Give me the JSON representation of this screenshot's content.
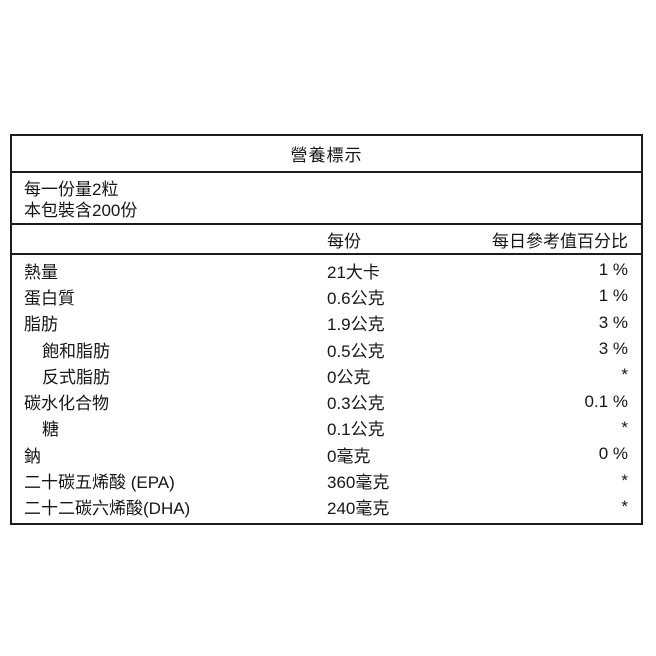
{
  "page": {
    "background_color": "#ffffff",
    "border_color": "#1c1c1c",
    "text_color": "#161616"
  },
  "table": {
    "title": "營養標示",
    "serving_lines": [
      "每一份量2粒",
      "本包裝含200份"
    ],
    "columns": {
      "amount": "每份",
      "daily_value": "每日參考值百分比"
    },
    "rows": [
      {
        "label": "熱量",
        "indent": false,
        "amount": "21大卡",
        "daily_value": "1 %"
      },
      {
        "label": "蛋白質",
        "indent": false,
        "amount": "0.6公克",
        "daily_value": "1 %"
      },
      {
        "label": "脂肪",
        "indent": false,
        "amount": "1.9公克",
        "daily_value": "3 %"
      },
      {
        "label": "飽和脂肪",
        "indent": true,
        "amount": "0.5公克",
        "daily_value": "3 %"
      },
      {
        "label": "反式脂肪",
        "indent": true,
        "amount": "0公克",
        "daily_value": "*"
      },
      {
        "label": "碳水化合物",
        "indent": false,
        "amount": "0.3公克",
        "daily_value": "0.1 %"
      },
      {
        "label": "糖",
        "indent": true,
        "amount": "0.1公克",
        "daily_value": "*"
      },
      {
        "label": "鈉",
        "indent": false,
        "amount": "0毫克",
        "daily_value": "0 %"
      },
      {
        "label": "二十碳五烯酸 (EPA)",
        "indent": false,
        "amount": "360毫克",
        "daily_value": "*"
      },
      {
        "label": "二十二碳六烯酸(DHA)",
        "indent": false,
        "amount": "240毫克",
        "daily_value": "*"
      }
    ]
  }
}
